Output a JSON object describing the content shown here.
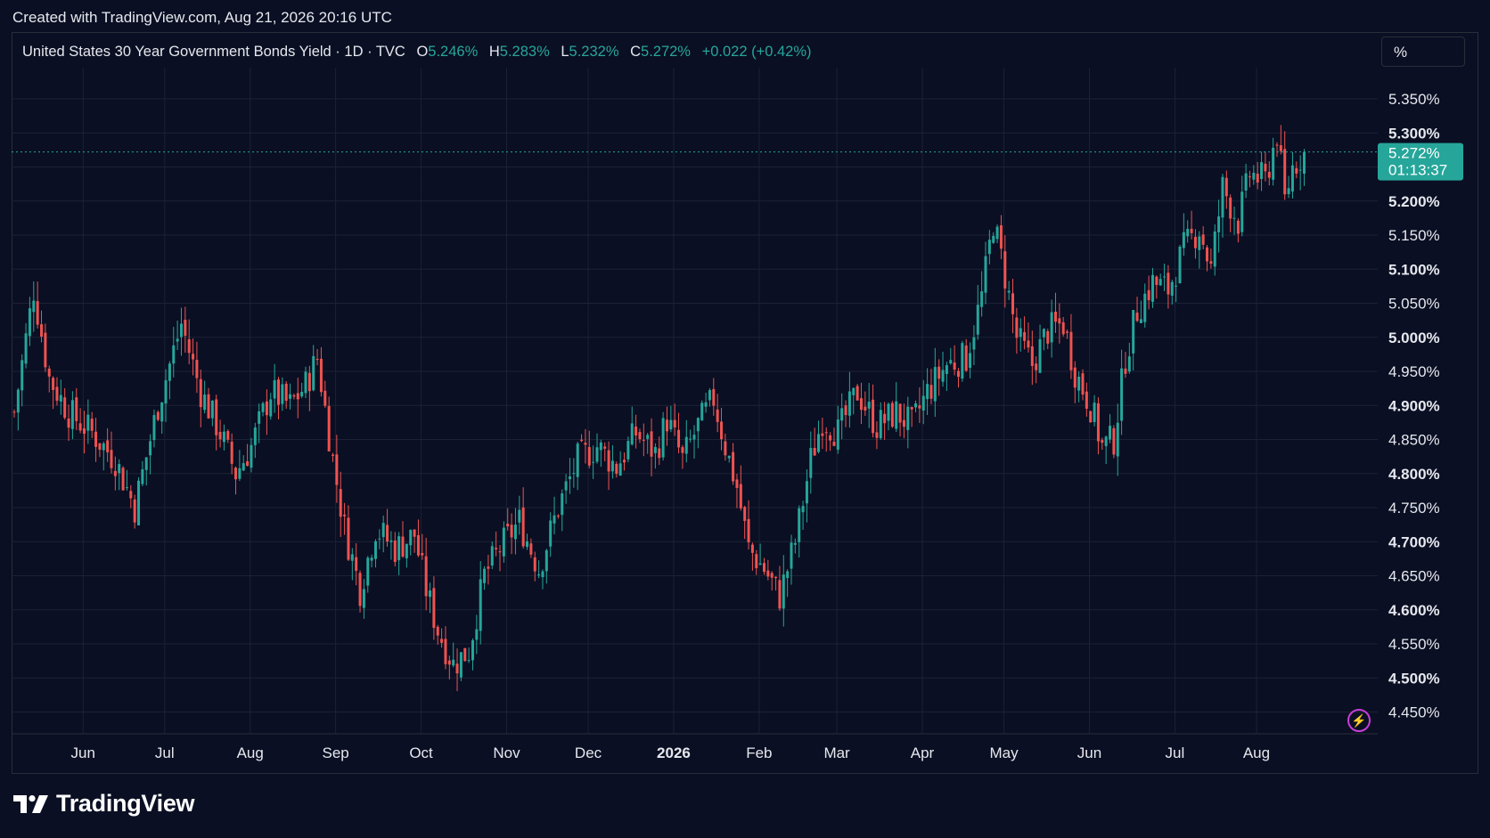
{
  "header": {
    "created_text": "Created with TradingView.com, Aug 21, 2026 20:16 UTC"
  },
  "legend": {
    "symbol": "United States 30 Year Government Bonds Yield · 1D · TVC",
    "open_label": "O",
    "open": "5.246%",
    "high_label": "H",
    "high": "5.283%",
    "low_label": "L",
    "low": "5.232%",
    "close_label": "C",
    "close": "5.272%",
    "change": "+0.022 (+0.42%)"
  },
  "scale_button": {
    "label": "%"
  },
  "price_tag": {
    "value": "5.272%",
    "countdown": "01:13:37"
  },
  "branding": {
    "logo_text": "TradingView",
    "logo_icon": "tradingview-logo-icon",
    "action_icon": "lightning-icon"
  },
  "colors": {
    "background": "#0a0f23",
    "up": "#26a69a",
    "down": "#ef5350",
    "grid": "#1c2236",
    "last_price": "#26a69a",
    "action": "#c83ed6"
  },
  "chart_data": {
    "type": "candlestick",
    "title": "United States 30 Year Government Bonds Yield",
    "ylim": [
      4.42,
      5.39
    ],
    "y_ticks": [
      "5.350%",
      "5.300%",
      "5.250%",
      "5.200%",
      "5.150%",
      "5.100%",
      "5.050%",
      "5.000%",
      "4.950%",
      "4.900%",
      "4.850%",
      "4.800%",
      "4.750%",
      "4.700%",
      "4.650%",
      "4.600%",
      "4.550%",
      "4.500%",
      "4.450%"
    ],
    "y_tick_values": [
      5.35,
      5.3,
      5.25,
      5.2,
      5.15,
      5.1,
      5.05,
      5.0,
      4.95,
      4.9,
      4.85,
      4.8,
      4.75,
      4.7,
      4.65,
      4.6,
      4.55,
      4.5,
      4.45
    ],
    "x_tick_labels": [
      "Jun",
      "Jul",
      "Aug",
      "Sep",
      "Oct",
      "Nov",
      "Dec",
      "2026",
      "Feb",
      "Mar",
      "Apr",
      "May",
      "Jun",
      "Jul",
      "Aug"
    ],
    "x_tick_bold": [
      false,
      false,
      false,
      false,
      false,
      false,
      false,
      true,
      false,
      false,
      false,
      false,
      false,
      false,
      false
    ],
    "x_tick_positions": [
      9,
      30,
      52,
      74,
      96,
      118,
      139,
      161,
      183,
      203,
      225,
      246,
      268,
      290,
      311
    ],
    "last_close": 5.272,
    "bars": 333,
    "close_path": [
      [
        0,
        4.89
      ],
      [
        5,
        5.07
      ],
      [
        9,
        4.94
      ],
      [
        14,
        4.89
      ],
      [
        20,
        4.86
      ],
      [
        26,
        4.82
      ],
      [
        31,
        4.75
      ],
      [
        37,
        4.9
      ],
      [
        43,
        5.02
      ],
      [
        48,
        4.92
      ],
      [
        53,
        4.86
      ],
      [
        57,
        4.8
      ],
      [
        61,
        4.84
      ],
      [
        66,
        4.92
      ],
      [
        71,
        4.9
      ],
      [
        75,
        4.93
      ],
      [
        78,
        4.97
      ],
      [
        82,
        4.82
      ],
      [
        85,
        4.72
      ],
      [
        89,
        4.63
      ],
      [
        93,
        4.72
      ],
      [
        98,
        4.69
      ],
      [
        103,
        4.71
      ],
      [
        106,
        4.63
      ],
      [
        109,
        4.57
      ],
      [
        113,
        4.52
      ],
      [
        117,
        4.54
      ],
      [
        121,
        4.65
      ],
      [
        125,
        4.69
      ],
      [
        130,
        4.73
      ],
      [
        135,
        4.66
      ],
      [
        140,
        4.75
      ],
      [
        145,
        4.82
      ],
      [
        150,
        4.84
      ],
      [
        155,
        4.81
      ],
      [
        160,
        4.86
      ],
      [
        165,
        4.83
      ],
      [
        168,
        4.88
      ],
      [
        172,
        4.82
      ],
      [
        176,
        4.87
      ],
      [
        180,
        4.91
      ],
      [
        183,
        4.84
      ],
      [
        186,
        4.78
      ],
      [
        189,
        4.69
      ],
      [
        193,
        4.66
      ],
      [
        197,
        4.62
      ],
      [
        201,
        4.7
      ],
      [
        205,
        4.82
      ],
      [
        208,
        4.88
      ],
      [
        212,
        4.86
      ],
      [
        217,
        4.92
      ],
      [
        222,
        4.87
      ],
      [
        227,
        4.89
      ],
      [
        231,
        4.87
      ],
      [
        235,
        4.92
      ],
      [
        240,
        4.96
      ],
      [
        245,
        4.97
      ],
      [
        249,
        5.06
      ],
      [
        252,
        5.17
      ],
      [
        255,
        5.09
      ],
      [
        258,
        5.0
      ],
      [
        262,
        4.96
      ],
      [
        266,
        5.01
      ],
      [
        270,
        5.02
      ],
      [
        273,
        4.95
      ],
      [
        277,
        4.9
      ],
      [
        280,
        4.84
      ],
      [
        283,
        4.85
      ],
      [
        286,
        4.97
      ],
      [
        289,
        5.04
      ],
      [
        293,
        5.08
      ],
      [
        297,
        5.07
      ],
      [
        301,
        5.13
      ],
      [
        305,
        5.16
      ],
      [
        308,
        5.1
      ],
      [
        311,
        5.22
      ],
      [
        315,
        5.17
      ],
      [
        318,
        5.24
      ],
      [
        322,
        5.23
      ],
      [
        325,
        5.3
      ],
      [
        327,
        5.2
      ],
      [
        329,
        5.25
      ],
      [
        332,
        5.272
      ]
    ]
  }
}
